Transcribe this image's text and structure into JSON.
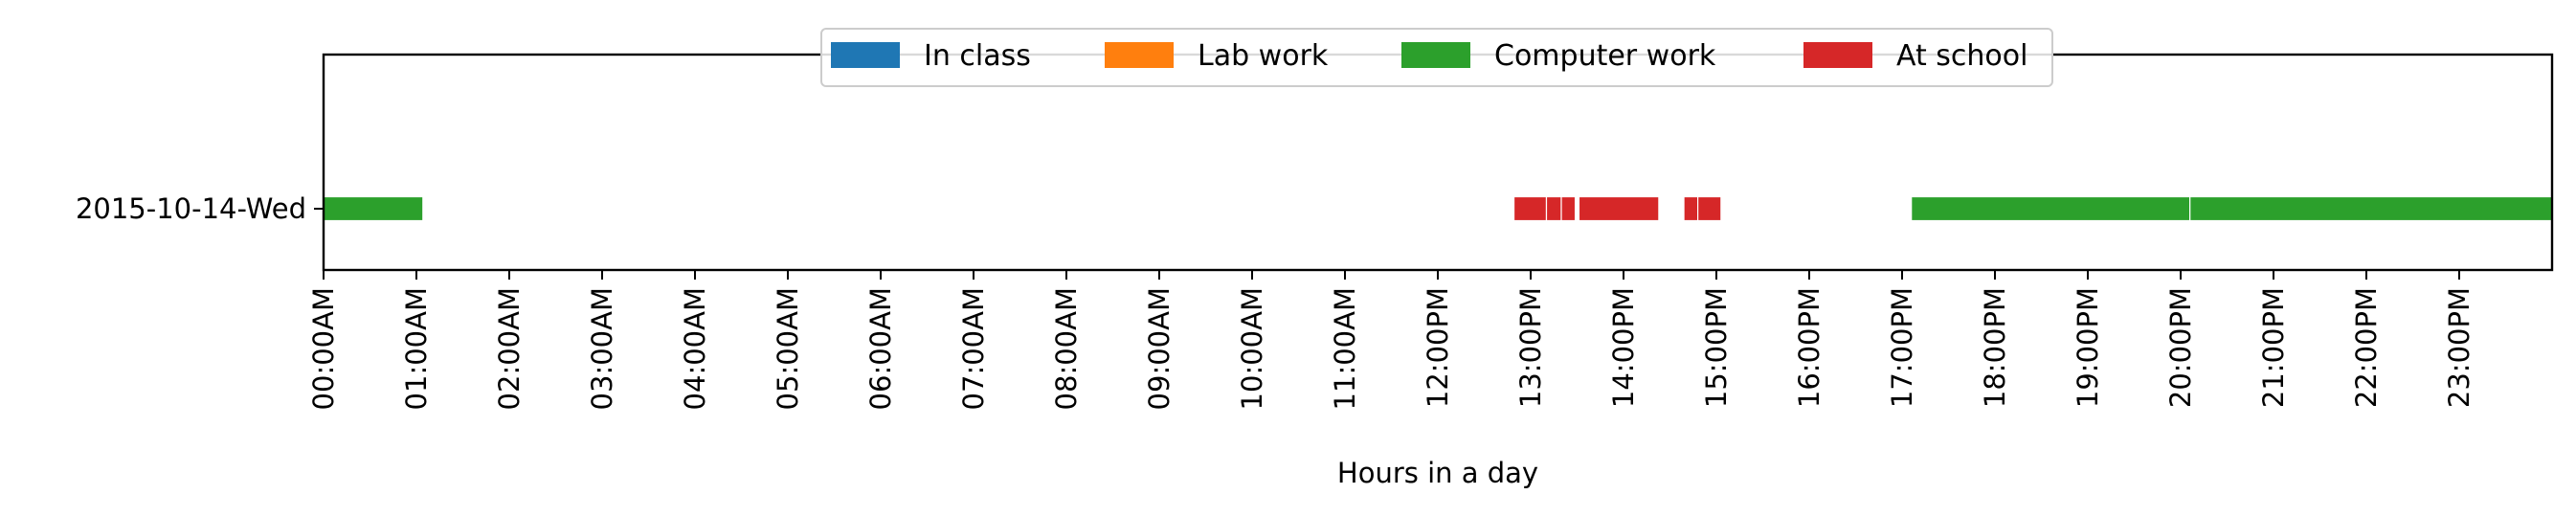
{
  "chart_data": {
    "type": "timeline",
    "xlabel": "Hours in a day",
    "ylabel": "",
    "xlim": [
      0,
      24
    ],
    "x_ticks": [
      {
        "value": 0,
        "label": "00:00AM"
      },
      {
        "value": 1,
        "label": "01:00AM"
      },
      {
        "value": 2,
        "label": "02:00AM"
      },
      {
        "value": 3,
        "label": "03:00AM"
      },
      {
        "value": 4,
        "label": "04:00AM"
      },
      {
        "value": 5,
        "label": "05:00AM"
      },
      {
        "value": 6,
        "label": "06:00AM"
      },
      {
        "value": 7,
        "label": "07:00AM"
      },
      {
        "value": 8,
        "label": "08:00AM"
      },
      {
        "value": 9,
        "label": "09:00AM"
      },
      {
        "value": 10,
        "label": "10:00AM"
      },
      {
        "value": 11,
        "label": "11:00AM"
      },
      {
        "value": 12,
        "label": "12:00PM"
      },
      {
        "value": 13,
        "label": "13:00PM"
      },
      {
        "value": 14,
        "label": "14:00PM"
      },
      {
        "value": 15,
        "label": "15:00PM"
      },
      {
        "value": 16,
        "label": "16:00PM"
      },
      {
        "value": 17,
        "label": "17:00PM"
      },
      {
        "value": 18,
        "label": "18:00PM"
      },
      {
        "value": 19,
        "label": "19:00PM"
      },
      {
        "value": 20,
        "label": "20:00PM"
      },
      {
        "value": 21,
        "label": "21:00PM"
      },
      {
        "value": 22,
        "label": "22:00PM"
      },
      {
        "value": 23,
        "label": "23:00PM"
      }
    ],
    "rows": [
      "2015-10-14-Wed"
    ],
    "legend": {
      "placement": "top-center",
      "entries": [
        {
          "name": "In class",
          "color": "#1f77b4"
        },
        {
          "name": "Lab work",
          "color": "#ff7f0e"
        },
        {
          "name": "Computer work",
          "color": "#2ca02c"
        },
        {
          "name": "At school",
          "color": "#d62728"
        }
      ]
    },
    "series": [
      {
        "name": "Computer work",
        "color": "#2ca02c",
        "row": "2015-10-14-Wed",
        "intervals": [
          [
            0.0,
            1.07
          ],
          [
            17.1,
            20.1
          ],
          [
            20.1,
            24.0
          ]
        ]
      },
      {
        "name": "At school",
        "color": "#d62728",
        "row": "2015-10-14-Wed",
        "intervals": [
          [
            12.82,
            13.17
          ],
          [
            13.17,
            13.33
          ],
          [
            13.33,
            13.48
          ],
          [
            13.52,
            14.38
          ],
          [
            14.65,
            14.8
          ],
          [
            14.8,
            15.05
          ]
        ]
      }
    ],
    "grid": false
  }
}
